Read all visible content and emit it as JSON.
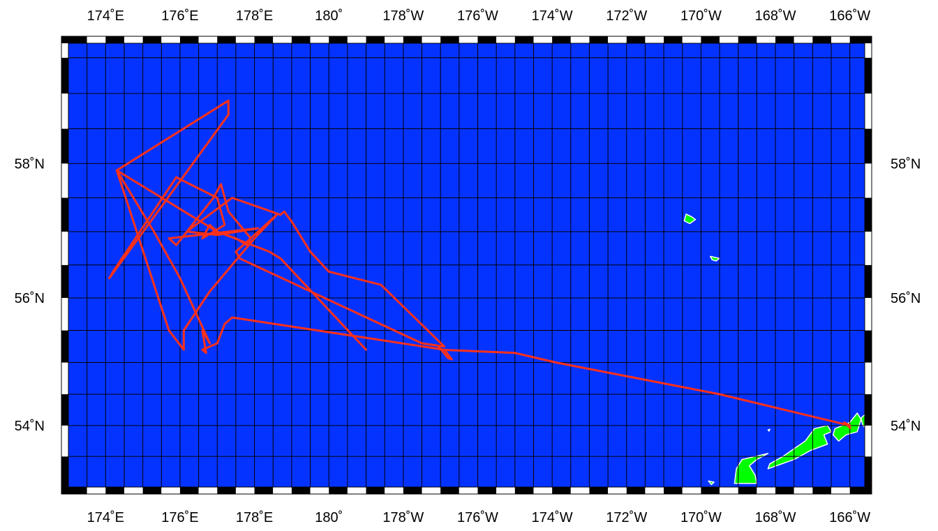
{
  "map": {
    "projection": "mercator",
    "lon_range_east": [
      173.0,
      194.4
    ],
    "lat_range": [
      53.0,
      59.7
    ],
    "colors": {
      "ocean": "#0433FF",
      "land": "#00FF00",
      "land_outline": "#ffffff",
      "grid": "#000000",
      "track": "#FF3019",
      "frame_dark": "#000000",
      "frame_light": "#ffffff"
    },
    "grid": true,
    "grid_step_lon_deg": 0.5,
    "grid_step_lat_deg": 0.5,
    "lon_ticks": [
      {
        "lon": 174,
        "label": "174˚E"
      },
      {
        "lon": 176,
        "label": "176˚E"
      },
      {
        "lon": 178,
        "label": "178˚E"
      },
      {
        "lon": 180,
        "label": "180˚"
      },
      {
        "lon": 182,
        "label": "178˚W"
      },
      {
        "lon": 184,
        "label": "176˚W"
      },
      {
        "lon": 186,
        "label": "174˚W"
      },
      {
        "lon": 188,
        "label": "172˚W"
      },
      {
        "lon": 190,
        "label": "170˚W"
      },
      {
        "lon": 192,
        "label": "168˚W"
      },
      {
        "lon": 194,
        "label": "166˚W"
      }
    ],
    "lat_ticks": [
      {
        "lat": 58,
        "label": "58˚N"
      },
      {
        "lat": 56,
        "label": "56˚N"
      },
      {
        "lat": 54,
        "label": "54˚N"
      }
    ],
    "islands": [
      {
        "name": "st-paul-island",
        "shape": [
          [
            189.6,
            57.26
          ],
          [
            189.75,
            57.22
          ],
          [
            189.85,
            57.18
          ],
          [
            189.7,
            57.12
          ],
          [
            189.55,
            57.16
          ]
        ]
      },
      {
        "name": "st-george-island",
        "shape": [
          [
            190.25,
            56.63
          ],
          [
            190.5,
            56.6
          ],
          [
            190.4,
            56.56
          ],
          [
            190.3,
            56.58
          ]
        ]
      },
      {
        "name": "bogoslof-dot",
        "shape": [
          [
            191.8,
            53.93
          ],
          [
            191.85,
            53.94
          ],
          [
            191.83,
            53.91
          ]
        ]
      },
      {
        "name": "umnak-islet",
        "shape": [
          [
            190.2,
            53.1
          ],
          [
            190.35,
            53.08
          ],
          [
            190.28,
            53.04
          ]
        ]
      },
      {
        "name": "umnak-island",
        "shape": [
          [
            190.9,
            53.06
          ],
          [
            191.5,
            53.06
          ],
          [
            191.45,
            53.2
          ],
          [
            191.3,
            53.35
          ],
          [
            191.5,
            53.45
          ],
          [
            191.8,
            53.55
          ],
          [
            191.45,
            53.5
          ],
          [
            191.1,
            53.45
          ],
          [
            190.95,
            53.3
          ]
        ]
      },
      {
        "name": "unalaska-island",
        "shape": [
          [
            191.8,
            53.3
          ],
          [
            192.5,
            53.45
          ],
          [
            192.95,
            53.6
          ],
          [
            193.4,
            53.7
          ],
          [
            193.3,
            53.85
          ],
          [
            193.5,
            53.9
          ],
          [
            193.4,
            54.0
          ],
          [
            193.05,
            53.95
          ],
          [
            192.8,
            53.75
          ],
          [
            192.2,
            53.5
          ],
          [
            191.85,
            53.38
          ]
        ]
      },
      {
        "name": "akun-island",
        "shape": [
          [
            193.6,
            53.95
          ],
          [
            194.0,
            54.05
          ],
          [
            194.2,
            54.2
          ],
          [
            194.3,
            54.1
          ],
          [
            194.2,
            53.9
          ],
          [
            193.9,
            53.85
          ],
          [
            193.7,
            53.75
          ],
          [
            193.55,
            53.85
          ]
        ]
      },
      {
        "name": "unimak-tip",
        "shape": [
          [
            194.3,
            54.12
          ],
          [
            194.45,
            54.2
          ],
          [
            194.45,
            53.95
          ],
          [
            194.35,
            54.0
          ]
        ]
      }
    ],
    "cruise_track": [
      [
        194.01,
        53.96
      ],
      [
        193.85,
        54.05
      ],
      [
        194.0,
        54.0
      ],
      [
        190.5,
        54.5
      ],
      [
        186.1,
        55.0
      ],
      [
        185.0,
        55.15
      ],
      [
        183.0,
        55.2
      ],
      [
        182.95,
        55.25
      ],
      [
        183.2,
        55.07
      ],
      [
        183.3,
        55.05
      ],
      [
        183.1,
        55.2
      ],
      [
        177.4,
        55.7
      ],
      [
        177.2,
        55.6
      ],
      [
        177.0,
        55.3
      ],
      [
        176.6,
        55.2
      ],
      [
        176.7,
        55.15
      ],
      [
        176.6,
        55.5
      ],
      [
        176.8,
        55.3
      ],
      [
        176.0,
        56.3
      ],
      [
        175.3,
        57.0
      ],
      [
        174.3,
        57.9
      ],
      [
        177.3,
        58.9
      ],
      [
        177.3,
        58.7
      ],
      [
        174.1,
        56.3
      ],
      [
        174.2,
        56.4
      ],
      [
        175.9,
        57.8
      ],
      [
        177.0,
        57.5
      ],
      [
        177.2,
        57.1
      ],
      [
        176.6,
        56.9
      ],
      [
        176.8,
        57.1
      ],
      [
        177.0,
        57.0
      ],
      [
        177.5,
        56.9
      ],
      [
        177.8,
        56.8
      ],
      [
        177.9,
        56.9
      ],
      [
        177.3,
        57.3
      ],
      [
        177.1,
        57.7
      ],
      [
        176.9,
        57.5
      ],
      [
        175.9,
        56.8
      ],
      [
        175.7,
        56.9
      ],
      [
        178.1,
        57.05
      ],
      [
        177.0,
        56.95
      ],
      [
        176.2,
        57.0
      ],
      [
        176.3,
        57.05
      ],
      [
        177.4,
        57.5
      ],
      [
        178.7,
        57.25
      ],
      [
        178.8,
        57.3
      ],
      [
        179.0,
        57.15
      ],
      [
        179.5,
        56.7
      ],
      [
        180.0,
        56.4
      ],
      [
        181.4,
        56.2
      ],
      [
        183.1,
        55.25
      ],
      [
        182.5,
        55.3
      ],
      [
        177.6,
        56.6
      ],
      [
        177.5,
        56.7
      ],
      [
        178.6,
        57.25
      ],
      [
        178.0,
        56.9
      ],
      [
        176.8,
        56.1
      ],
      [
        176.1,
        55.5
      ],
      [
        176.1,
        55.2
      ],
      [
        175.7,
        55.5
      ],
      [
        174.3,
        57.9
      ],
      [
        177.0,
        57.0
      ],
      [
        178.4,
        56.7
      ],
      [
        178.7,
        56.6
      ],
      [
        181.0,
        55.2
      ]
    ]
  }
}
